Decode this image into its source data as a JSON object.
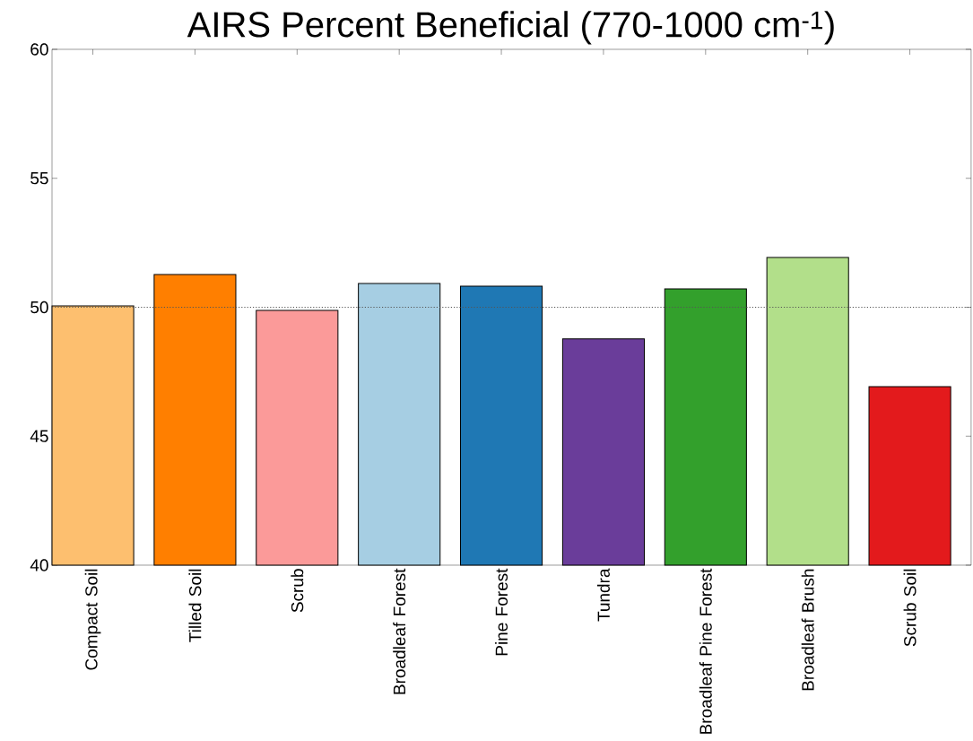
{
  "chart_data": {
    "type": "bar",
    "title": "AIRS Percent Beneficial (770-1000 cm$^{-1}$)",
    "categories": [
      "Compact Soil",
      "Tilled Soil",
      "Scrub",
      "Broadleaf Forest",
      "Pine Forest",
      "Tundra",
      "Broadleaf Pine Forest",
      "Broadleaf Brush",
      "Scrub Soil"
    ],
    "values": [
      50.05,
      51.27,
      49.88,
      50.92,
      50.82,
      48.77,
      50.71,
      51.93,
      46.92
    ],
    "colors": [
      "#fdbf6f",
      "#ff7f00",
      "#fb9a99",
      "#a6cee3",
      "#1f78b4",
      "#6a3d9a",
      "#33a02c",
      "#b2df8a",
      "#e31a1c"
    ],
    "ylim": [
      40,
      60
    ],
    "yticks": [
      40,
      45,
      50,
      55,
      60
    ],
    "ref_lines": [
      {
        "axis": "y",
        "value": 50,
        "color": "#555555",
        "line_style": "dotted"
      }
    ]
  }
}
